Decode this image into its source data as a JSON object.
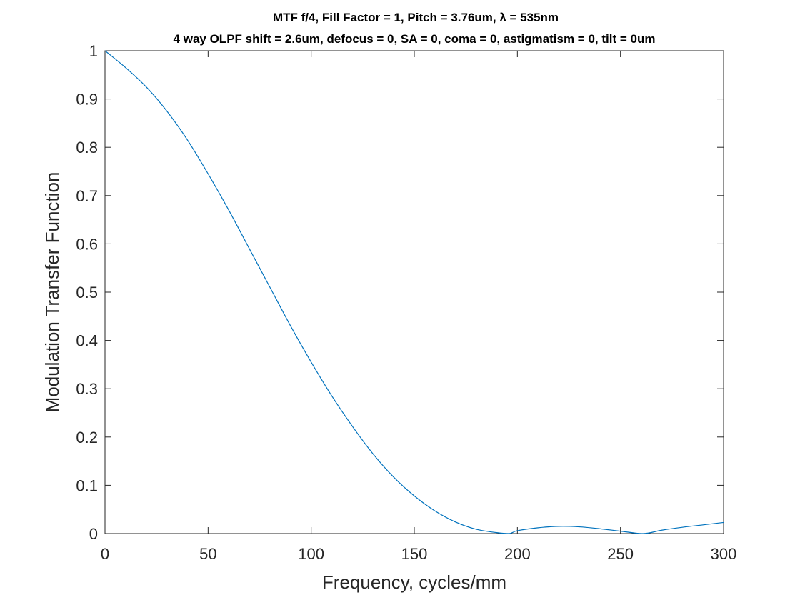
{
  "chart_data": {
    "type": "line",
    "title_line1": "MTF f/4, Fill Factor = 1, Pitch = 3.76um, λ = 535nm",
    "title_line2": "4 way OLPF shift = 2.6um, defocus = 0, SA = 0, coma = 0, astigmatism = 0, tilt = 0um",
    "xlabel": "Frequency, cycles/mm",
    "ylabel": "Modulation Transfer Function",
    "xlim": [
      0,
      300
    ],
    "ylim": [
      0,
      1
    ],
    "xticks": [
      "0",
      "50",
      "100",
      "150",
      "200",
      "250",
      "300"
    ],
    "yticks": [
      "0",
      "0.1",
      "0.2",
      "0.3",
      "0.4",
      "0.5",
      "0.6",
      "0.7",
      "0.8",
      "0.9",
      "1"
    ],
    "grid": false,
    "legend": "none",
    "line_color": "#0072bd",
    "series": [
      {
        "x": [
          0,
          10,
          20,
          30,
          40,
          50,
          60,
          70,
          80,
          90,
          100,
          110,
          120,
          130,
          140,
          150,
          160,
          170,
          180,
          190,
          196,
          200,
          210,
          220,
          230,
          240,
          250,
          261,
          270,
          280,
          290,
          300
        ],
        "y": [
          1.0,
          0.965,
          0.925,
          0.875,
          0.815,
          0.745,
          0.67,
          0.59,
          0.51,
          0.43,
          0.355,
          0.285,
          0.222,
          0.165,
          0.117,
          0.078,
          0.047,
          0.024,
          0.009,
          0.002,
          0.0,
          0.006,
          0.012,
          0.015,
          0.014,
          0.01,
          0.005,
          0.0,
          0.007,
          0.013,
          0.018,
          0.023
        ]
      }
    ]
  }
}
